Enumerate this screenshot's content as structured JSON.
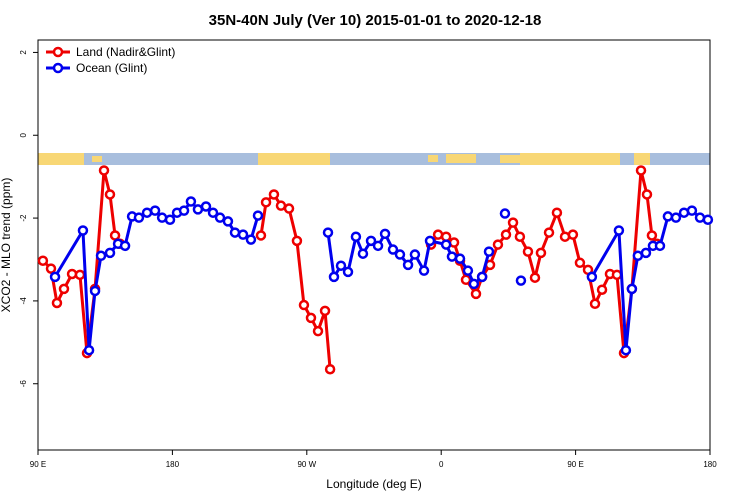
{
  "chart_data": {
    "type": "line",
    "title": "35N-40N July (Ver 10)   2015-01-01 to 2020-12-18",
    "x_label": "Longitude (deg E)",
    "y_label": "XCO2 - MLO trend (ppm)",
    "xlim": [
      90,
      540
    ],
    "ylim": [
      -7.6,
      2.3
    ],
    "xticks": [
      {
        "value": 90,
        "label": "90 E"
      },
      180,
      {
        "value": 270,
        "label": "90 W"
      },
      {
        "value": 360,
        "label": "0"
      },
      {
        "value": 450,
        "label": "90 E"
      },
      {
        "value": 540,
        "label": "180"
      }
    ],
    "yticks": [
      2,
      0,
      -2,
      -4,
      -6
    ],
    "legend": "top-left",
    "series": [
      {
        "name": "Land (Nadir&Glint)",
        "color": "#ee0000",
        "x": [
          93.3,
          98.7,
          102.7,
          107.4,
          112.8,
          118.1,
          122.8,
          128.2,
          134.2,
          138.2,
          141.6,
          144.9,
          null,
          239.3,
          242.7,
          248.0,
          252.7,
          258.1,
          263.4,
          268.1,
          272.8,
          277.5,
          282.2,
          285.6,
          null,
          353.2,
          357.9,
          363.3,
          368.6,
          372.6,
          376.6,
          383.3,
          387.4,
          392.7,
          398.0,
          403.4,
          408.1,
          412.7,
          418.1,
          422.8,
          426.8,
          432.2,
          437.5,
          442.9,
          448.2,
          452.9,
          458.3,
          463.0,
          467.7,
          473.0,
          477.7,
          482.4,
          487.7,
          493.8,
          497.8,
          501.1,
          504.5
        ],
        "values": [
          -3.03,
          -3.22,
          -4.05,
          -3.71,
          -3.35,
          -3.37,
          -5.26,
          -3.71,
          -0.85,
          -1.43,
          -2.42,
          -2.62,
          null,
          -2.42,
          -1.62,
          -1.43,
          -1.7,
          -1.77,
          -2.55,
          -4.1,
          -4.41,
          -4.73,
          -4.24,
          -5.65,
          null,
          -2.64,
          -2.4,
          -2.45,
          -2.59,
          -3.03,
          -3.49,
          -3.83,
          -3.42,
          -3.13,
          -2.64,
          -2.4,
          -2.11,
          -2.45,
          -2.81,
          -3.44,
          -2.84,
          -2.35,
          -1.87,
          -2.45,
          -2.4,
          -3.08,
          -3.25,
          -4.07,
          -3.73,
          -3.35,
          -3.37,
          -5.26,
          -3.71,
          -0.85,
          -1.43,
          -2.42,
          -2.62
        ]
      },
      {
        "name": "Ocean (Glint)",
        "color": "#0000ee",
        "x": [
          101.4,
          120.1,
          124.2,
          128.2,
          132.2,
          138.2,
          143.6,
          148.3,
          153.0,
          157.6,
          163.0,
          168.4,
          173.1,
          178.4,
          183.1,
          187.8,
          192.4,
          197.1,
          202.5,
          207.2,
          211.9,
          217.2,
          221.9,
          227.3,
          232.6,
          237.3,
          null,
          284.2,
          288.2,
          292.9,
          297.6,
          302.9,
          307.6,
          313.0,
          317.7,
          322.4,
          327.7,
          332.4,
          337.8,
          342.4,
          348.5,
          352.5,
          363.3,
          367.2,
          372.6,
          377.9,
          381.9,
          387.4,
          392.0,
          null,
          402.7,
          null,
          413.4,
          null,
          460.9,
          479.0,
          483.7,
          487.7,
          491.7,
          497.1,
          501.8,
          506.5,
          511.8,
          517.2,
          522.6,
          527.9,
          533.3,
          538.6
        ],
        "values": [
          -3.42,
          -2.3,
          -5.19,
          -3.76,
          -2.91,
          -2.84,
          -2.62,
          -2.67,
          -1.96,
          -1.99,
          -1.87,
          -1.82,
          -1.99,
          -2.04,
          -1.87,
          -1.82,
          -1.6,
          -1.79,
          -1.72,
          -1.87,
          -1.99,
          -2.08,
          -2.35,
          -2.4,
          -2.52,
          -1.94,
          null,
          -2.35,
          -3.42,
          -3.15,
          -3.3,
          -2.45,
          -2.86,
          -2.55,
          -2.67,
          -2.38,
          -2.76,
          -2.88,
          -3.13,
          -2.88,
          -3.27,
          -2.55,
          -2.64,
          -2.93,
          -2.98,
          -3.27,
          -3.59,
          -3.42,
          -2.81,
          null,
          -1.89,
          null,
          -3.51,
          null,
          -3.42,
          -2.3,
          -5.19,
          -3.71,
          -2.91,
          -2.84,
          -2.67,
          -2.67,
          -1.96,
          -1.99,
          -1.87,
          -1.82,
          -1.99,
          -2.04
        ]
      }
    ]
  }
}
